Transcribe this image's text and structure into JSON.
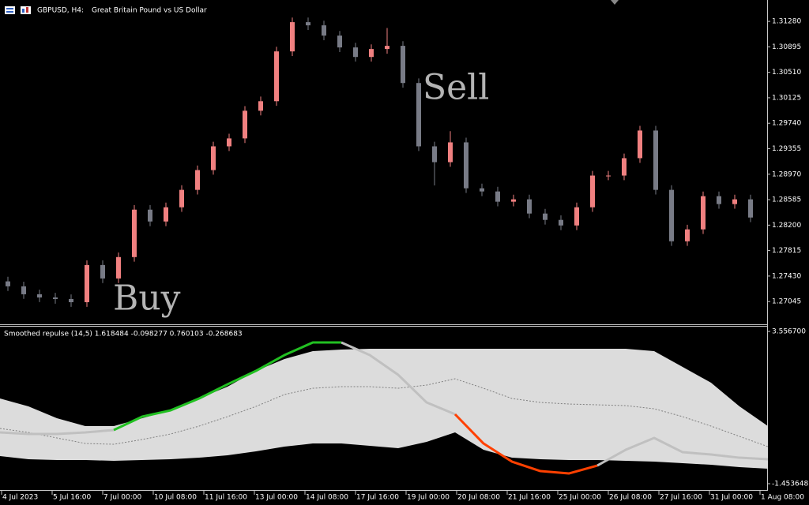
{
  "header": {
    "symbol": "GBPUSD, H4:",
    "description": "Great Britain Pound vs US Dollar"
  },
  "time_axis": [
    "4 Jul 2023",
    "5 Jul 16:00",
    "7 Jul 00:00",
    "10 Jul 08:00",
    "11 Jul 16:00",
    "13 Jul 00:00",
    "14 Jul 08:00",
    "17 Jul 16:00",
    "19 Jul 00:00",
    "20 Jul 08:00",
    "21 Jul 16:00",
    "25 Jul 00:00",
    "26 Jul 08:00",
    "27 Jul 16:00",
    "31 Jul 00:00",
    "1 Aug 08:00"
  ],
  "chart_data": [
    {
      "type": "candlestick",
      "annotations": [
        "Buy",
        "Sell"
      ],
      "up_color": "#f08080",
      "down_color": "#787b86",
      "open": [
        1.2735,
        1.27275,
        1.27155,
        1.27107,
        1.27083,
        1.27035,
        1.27597,
        1.27394,
        1.27717,
        1.28434,
        1.28255,
        1.2847,
        1.28733,
        1.29032,
        1.29391,
        1.29511,
        1.29929,
        1.30073,
        1.30826,
        1.31268,
        1.3122,
        1.31065,
        1.30886,
        1.30742,
        1.30862,
        1.3091,
        1.30348,
        1.29391,
        1.29152,
        1.29451,
        1.28757,
        1.28709,
        1.28554,
        1.2859,
        1.28375,
        1.28279,
        1.28195,
        1.2847,
        1.28949,
        1.28949,
        1.29212,
        1.2963,
        1.28733,
        1.27956,
        1.28136,
        1.28638,
        1.28518,
        1.2859
      ],
      "high": [
        1.2742,
        1.27345,
        1.27225,
        1.27177,
        1.27153,
        1.27667,
        1.27667,
        1.27787,
        1.28504,
        1.28504,
        1.2854,
        1.28803,
        1.29102,
        1.29461,
        1.29581,
        1.29999,
        1.30143,
        1.30896,
        1.31338,
        1.31338,
        1.3129,
        1.31135,
        1.30956,
        1.30932,
        1.3118,
        1.3098,
        1.30418,
        1.29461,
        1.2962,
        1.29521,
        1.28827,
        1.28779,
        1.2866,
        1.2866,
        1.28445,
        1.28349,
        1.2854,
        1.29019,
        1.29019,
        1.29282,
        1.297,
        1.297,
        1.28803,
        1.28206,
        1.28708,
        1.28708,
        1.2866,
        1.2866
      ],
      "low": [
        1.27205,
        1.27085,
        1.27037,
        1.27013,
        1.26965,
        1.26965,
        1.27324,
        1.27324,
        1.27647,
        1.28185,
        1.28185,
        1.284,
        1.28663,
        1.28962,
        1.29321,
        1.29441,
        1.29859,
        1.30003,
        1.30756,
        1.3115,
        1.30995,
        1.30816,
        1.30672,
        1.30672,
        1.30792,
        1.30278,
        1.29321,
        1.288,
        1.29082,
        1.28687,
        1.28639,
        1.28484,
        1.28484,
        1.28305,
        1.28209,
        1.28125,
        1.28125,
        1.284,
        1.28879,
        1.28879,
        1.29142,
        1.28663,
        1.27886,
        1.27886,
        1.28066,
        1.28448,
        1.28448,
        1.28245
      ],
      "close": [
        1.27275,
        1.27155,
        1.27107,
        1.27083,
        1.27035,
        1.27597,
        1.27394,
        1.27717,
        1.28434,
        1.28255,
        1.2847,
        1.28733,
        1.29032,
        1.29391,
        1.29511,
        1.29929,
        1.30073,
        1.30826,
        1.31268,
        1.3122,
        1.31065,
        1.30886,
        1.30742,
        1.30862,
        1.3091,
        1.30348,
        1.29391,
        1.29152,
        1.29451,
        1.28757,
        1.28709,
        1.28554,
        1.2859,
        1.28375,
        1.28279,
        1.28195,
        1.2847,
        1.28949,
        1.28949,
        1.29212,
        1.2963,
        1.28733,
        1.27956,
        1.28136,
        1.28638,
        1.28518,
        1.2859,
        1.28315
      ],
      "ylim": [
        1.26701,
        1.31603
      ],
      "yticks": [
        {
          "value": 1.3128,
          "label": "1.31280"
        },
        {
          "value": 1.30895,
          "label": "1.30895"
        },
        {
          "value": 1.3051,
          "label": "1.30510"
        },
        {
          "value": 1.30125,
          "label": "1.30125"
        },
        {
          "value": 1.2974,
          "label": "1.29740"
        },
        {
          "value": 1.29355,
          "label": "1.29355"
        },
        {
          "value": 1.2897,
          "label": "1.28970"
        },
        {
          "value": 1.28585,
          "label": "1.28585"
        },
        {
          "value": 1.282,
          "label": "1.28200"
        },
        {
          "value": 1.27815,
          "label": "1.27815"
        },
        {
          "value": 1.2743,
          "label": "1.27430"
        },
        {
          "value": 1.27045,
          "label": "1.27045"
        }
      ]
    },
    {
      "type": "line",
      "title": "Smoothed repulse (14,5) 1.618484 -0.098277 0.760103 -0.268683",
      "band": {
        "color": "#dcdcdc",
        "upper": [
          1.35,
          1.09,
          0.701,
          0.442,
          0.442,
          0.701,
          0.96,
          1.35,
          1.739,
          2.259,
          2.648,
          2.908,
          2.96,
          2.986,
          2.986,
          2.986,
          2.986,
          2.986,
          2.986,
          2.986,
          2.986,
          2.986,
          2.986,
          2.908,
          2.389,
          1.869,
          1.09,
          0.442
        ],
        "lower": [
          -0.546,
          -0.65,
          -0.675,
          -0.675,
          -0.701,
          -0.675,
          -0.65,
          -0.598,
          -0.52,
          -0.39,
          -0.234,
          -0.13,
          -0.13,
          -0.208,
          -0.286,
          -0.078,
          0.234,
          -0.338,
          -0.598,
          -0.65,
          -0.675,
          -0.675,
          -0.701,
          -0.727,
          -0.779,
          -0.831,
          -0.909,
          -0.961
        ]
      },
      "series": [
        {
          "color": "#808080",
          "dashed": true,
          "values": [
            0.364,
            0.234,
            0.052,
            -0.13,
            -0.156,
            0.0,
            0.182,
            0.442,
            0.753,
            1.09,
            1.48,
            1.687,
            1.739,
            1.739,
            1.687,
            1.791,
            1.999,
            1.687,
            1.35,
            1.22,
            1.168,
            1.142,
            1.116,
            1.012,
            0.753,
            0.442,
            0.104,
            -0.234
          ]
        },
        {
          "color": "#c0c0c0",
          "values": [
            0.234,
            0.182,
            0.182,
            0.234,
            0.312,
            null,
            null,
            null,
            null,
            null,
            null,
            null,
            3.193,
            2.778,
            2.129,
            1.22,
            0.831,
            null,
            null,
            null,
            null,
            -0.857,
            -0.338,
            0.052,
            -0.416,
            -0.494,
            -0.598,
            -0.65
          ]
        },
        {
          "color": "#22c022",
          "values": [
            null,
            null,
            null,
            null,
            0.312,
            0.753,
            0.96,
            1.35,
            1.817,
            2.259,
            2.778,
            3.193,
            3.193,
            null,
            null,
            null,
            null,
            null,
            null,
            null,
            null,
            null,
            null,
            null,
            null,
            null,
            null,
            null
          ]
        },
        {
          "color": "#ff4000",
          "values": [
            null,
            null,
            null,
            null,
            null,
            null,
            null,
            null,
            null,
            null,
            null,
            null,
            null,
            null,
            null,
            null,
            0.831,
            -0.13,
            -0.727,
            -1.039,
            -1.117,
            -0.857,
            null,
            null,
            null,
            null,
            null,
            null
          ]
        }
      ],
      "ylim": [
        -1.687,
        3.713
      ],
      "yticks": [
        {
          "value": 3.5567,
          "label": "3.556700"
        },
        {
          "value": -1.453648,
          "label": "-1.453648"
        }
      ]
    }
  ]
}
